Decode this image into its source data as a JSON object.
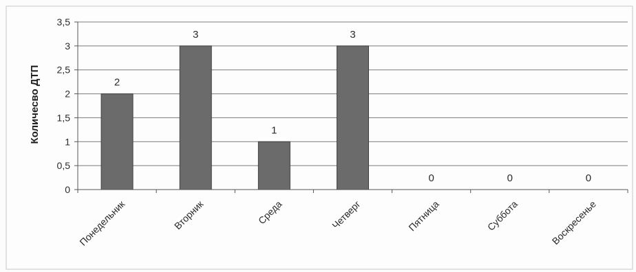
{
  "chart_data": {
    "type": "bar",
    "title": "",
    "xlabel": "",
    "ylabel": "Количесво ДТП",
    "categories": [
      "Понедельник",
      "Вторник",
      "Среда",
      "Четверг",
      "Пятница",
      "Суббота",
      "Воскресенье"
    ],
    "values": [
      2,
      3,
      1,
      3,
      0,
      0,
      0
    ],
    "data_labels": [
      "2",
      "3",
      "1",
      "3",
      "0",
      "0",
      "0"
    ],
    "ylim": [
      0,
      3.5
    ],
    "y_ticks": [
      0,
      0.5,
      1,
      1.5,
      2,
      2.5,
      3,
      3.5
    ],
    "y_tick_labels": [
      "0",
      "0,5",
      "1",
      "1,5",
      "2",
      "2,5",
      "3",
      "3,5"
    ],
    "grid": true,
    "legend": "none",
    "bar_color": "#6b6b6b",
    "grid_color": "#7a7a7a"
  }
}
